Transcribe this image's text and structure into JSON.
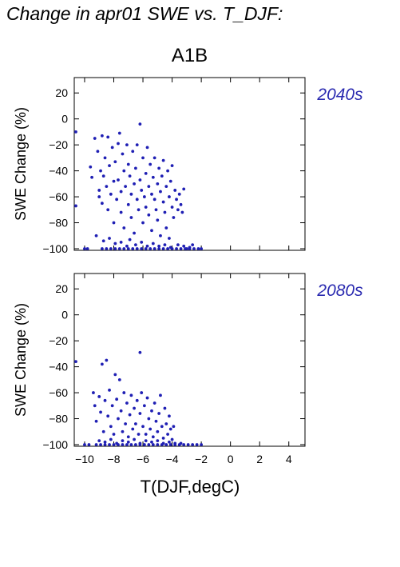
{
  "figure": {
    "title": "Change in apr01 SWE vs. T_DJF:",
    "scenario": "A1B",
    "xlabel": "T(DJF,degC)",
    "point_color": "#1f1fb4",
    "label_color": "#2a2ab0"
  },
  "chart_data": [
    {
      "type": "scatter",
      "panel_label": "2040s",
      "ylabel": "SWE Change (%)",
      "xlim": [
        -10.6,
        5.0
      ],
      "ylim": [
        -100,
        30
      ],
      "xticks": [
        -10,
        -8,
        -6,
        -4,
        -2,
        0,
        2,
        4
      ],
      "yticks": [
        20,
        0,
        -20,
        -40,
        -60,
        -80,
        -100
      ],
      "x_tick_labels": [
        "−10",
        "−8",
        "−6",
        "−4",
        "−2",
        "0",
        "2",
        "4"
      ],
      "y_tick_labels": [
        "20",
        "0",
        "−20",
        "−40",
        "−60",
        "−80",
        "−100"
      ],
      "show_x_tick_labels": false,
      "grid": false,
      "points": [
        [
          -10.6,
          -10
        ],
        [
          -10.6,
          -67
        ],
        [
          -10.0,
          -100
        ],
        [
          -9.8,
          -100
        ],
        [
          -9.6,
          -37
        ],
        [
          -9.5,
          -45
        ],
        [
          -9.3,
          -15
        ],
        [
          -9.1,
          -25
        ],
        [
          -9.0,
          -55
        ],
        [
          -9.0,
          -60
        ],
        [
          -8.9,
          -40
        ],
        [
          -8.8,
          -13
        ],
        [
          -8.8,
          -65
        ],
        [
          -8.7,
          -44
        ],
        [
          -8.6,
          -30
        ],
        [
          -8.5,
          -52
        ],
        [
          -8.4,
          -14
        ],
        [
          -8.4,
          -70
        ],
        [
          -8.3,
          -36
        ],
        [
          -8.2,
          -58
        ],
        [
          -8.1,
          -22
        ],
        [
          -8.0,
          -48
        ],
        [
          -8.0,
          -80
        ],
        [
          -7.9,
          -33
        ],
        [
          -7.8,
          -62
        ],
        [
          -7.7,
          -19
        ],
        [
          -7.7,
          -47
        ],
        [
          -7.6,
          -11
        ],
        [
          -7.5,
          -56
        ],
        [
          -7.5,
          -72
        ],
        [
          -7.4,
          -27
        ],
        [
          -7.3,
          -40
        ],
        [
          -7.3,
          -84
        ],
        [
          -7.2,
          -52
        ],
        [
          -7.1,
          -20
        ],
        [
          -7.0,
          -35
        ],
        [
          -7.0,
          -66
        ],
        [
          -6.9,
          -44
        ],
        [
          -6.8,
          -58
        ],
        [
          -6.8,
          -76
        ],
        [
          -6.7,
          -25
        ],
        [
          -6.6,
          -50
        ],
        [
          -6.6,
          -88
        ],
        [
          -6.5,
          -38
        ],
        [
          -6.4,
          -62
        ],
        [
          -6.4,
          -20
        ],
        [
          -6.3,
          -70
        ],
        [
          -6.2,
          -47
        ],
        [
          -6.2,
          -4
        ],
        [
          -6.1,
          -55
        ],
        [
          -6.0,
          -30
        ],
        [
          -6.0,
          -80
        ],
        [
          -5.9,
          -60
        ],
        [
          -5.8,
          -42
        ],
        [
          -5.8,
          -68
        ],
        [
          -5.7,
          -22
        ],
        [
          -5.6,
          -52
        ],
        [
          -5.6,
          -74
        ],
        [
          -5.5,
          -35
        ],
        [
          -5.4,
          -58
        ],
        [
          -5.4,
          -86
        ],
        [
          -5.3,
          -45
        ],
        [
          -5.2,
          -62
        ],
        [
          -5.2,
          -30
        ],
        [
          -5.1,
          -70
        ],
        [
          -5.0,
          -50
        ],
        [
          -5.0,
          -78
        ],
        [
          -4.9,
          -38
        ],
        [
          -4.8,
          -56
        ],
        [
          -4.8,
          -90
        ],
        [
          -4.7,
          -44
        ],
        [
          -4.6,
          -64
        ],
        [
          -4.6,
          -32
        ],
        [
          -4.5,
          -72
        ],
        [
          -4.4,
          -52
        ],
        [
          -4.4,
          -84
        ],
        [
          -4.3,
          -40
        ],
        [
          -4.2,
          -60
        ],
        [
          -4.2,
          -92
        ],
        [
          -4.1,
          -48
        ],
        [
          -4.0,
          -68
        ],
        [
          -4.0,
          -36
        ],
        [
          -3.9,
          -76
        ],
        [
          -3.8,
          -55
        ],
        [
          -3.7,
          -62
        ],
        [
          -3.6,
          -70
        ],
        [
          -3.5,
          -58
        ],
        [
          -3.4,
          -66
        ],
        [
          -3.3,
          -72
        ],
        [
          -3.2,
          -54
        ],
        [
          -3.0,
          -100
        ],
        [
          -9.2,
          -90
        ],
        [
          -8.7,
          -94
        ],
        [
          -8.3,
          -92
        ],
        [
          -7.9,
          -96
        ],
        [
          -7.5,
          -95
        ],
        [
          -7.1,
          -98
        ],
        [
          -6.9,
          -93
        ],
        [
          -6.5,
          -97
        ],
        [
          -6.1,
          -95
        ],
        [
          -5.7,
          -98
        ],
        [
          -5.3,
          -96
        ],
        [
          -4.9,
          -98
        ],
        [
          -4.5,
          -97
        ],
        [
          -4.1,
          -99
        ],
        [
          -3.6,
          -97
        ],
        [
          -3.2,
          -98
        ],
        [
          -2.8,
          -99
        ],
        [
          -2.6,
          -97
        ],
        [
          -8.8,
          -100
        ],
        [
          -8.5,
          -100
        ],
        [
          -8.2,
          -100
        ],
        [
          -7.9,
          -100
        ],
        [
          -7.6,
          -100
        ],
        [
          -7.3,
          -100
        ],
        [
          -7.0,
          -100
        ],
        [
          -6.7,
          -100
        ],
        [
          -6.4,
          -100
        ],
        [
          -6.1,
          -100
        ],
        [
          -5.8,
          -100
        ],
        [
          -5.5,
          -100
        ],
        [
          -5.2,
          -100
        ],
        [
          -4.9,
          -100
        ],
        [
          -4.6,
          -100
        ],
        [
          -4.3,
          -100
        ],
        [
          -4.0,
          -100
        ],
        [
          -3.7,
          -100
        ],
        [
          -3.4,
          -100
        ],
        [
          -3.1,
          -100
        ],
        [
          -2.8,
          -100
        ],
        [
          -2.5,
          -100
        ],
        [
          -2.2,
          -100
        ],
        [
          -2.0,
          -100
        ]
      ]
    },
    {
      "type": "scatter",
      "panel_label": "2080s",
      "ylabel": "SWE Change (%)",
      "xlim": [
        -10.6,
        5.0
      ],
      "ylim": [
        -100,
        30
      ],
      "xticks": [
        -10,
        -8,
        -6,
        -4,
        -2,
        0,
        2,
        4
      ],
      "yticks": [
        20,
        0,
        -20,
        -40,
        -60,
        -80,
        -100
      ],
      "x_tick_labels": [
        "−10",
        "−8",
        "−6",
        "−4",
        "−2",
        "0",
        "2",
        "4"
      ],
      "y_tick_labels": [
        "20",
        "0",
        "−20",
        "−40",
        "−60",
        "−80",
        "−100"
      ],
      "show_x_tick_labels": true,
      "grid": false,
      "points": [
        [
          -10.6,
          -36
        ],
        [
          -10.0,
          -100
        ],
        [
          -9.7,
          -100
        ],
        [
          -9.4,
          -60
        ],
        [
          -9.3,
          -70
        ],
        [
          -9.2,
          -82
        ],
        [
          -9.0,
          -63
        ],
        [
          -8.9,
          -75
        ],
        [
          -8.8,
          -38
        ],
        [
          -8.7,
          -90
        ],
        [
          -8.6,
          -66
        ],
        [
          -8.5,
          -35
        ],
        [
          -8.4,
          -78
        ],
        [
          -8.3,
          -58
        ],
        [
          -8.2,
          -86
        ],
        [
          -8.1,
          -70
        ],
        [
          -8.0,
          -92
        ],
        [
          -7.9,
          -46
        ],
        [
          -7.8,
          -65
        ],
        [
          -7.7,
          -80
        ],
        [
          -7.6,
          -50
        ],
        [
          -7.5,
          -74
        ],
        [
          -7.4,
          -90
        ],
        [
          -7.3,
          -60
        ],
        [
          -7.2,
          -84
        ],
        [
          -7.1,
          -68
        ],
        [
          -7.0,
          -94
        ],
        [
          -6.9,
          -77
        ],
        [
          -6.8,
          -62
        ],
        [
          -6.7,
          -88
        ],
        [
          -6.6,
          -72
        ],
        [
          -6.5,
          -84
        ],
        [
          -6.4,
          -66
        ],
        [
          -6.3,
          -92
        ],
        [
          -6.2,
          -29
        ],
        [
          -6.2,
          -76
        ],
        [
          -6.1,
          -60
        ],
        [
          -6.0,
          -86
        ],
        [
          -5.9,
          -70
        ],
        [
          -5.8,
          -92
        ],
        [
          -5.7,
          -64
        ],
        [
          -5.6,
          -80
        ],
        [
          -5.5,
          -88
        ],
        [
          -5.4,
          -74
        ],
        [
          -5.3,
          -94
        ],
        [
          -5.2,
          -68
        ],
        [
          -5.1,
          -82
        ],
        [
          -5.0,
          -90
        ],
        [
          -4.9,
          -76
        ],
        [
          -4.8,
          -62
        ],
        [
          -4.7,
          -86
        ],
        [
          -4.6,
          -95
        ],
        [
          -4.5,
          -72
        ],
        [
          -4.4,
          -84
        ],
        [
          -4.3,
          -92
        ],
        [
          -4.2,
          -78
        ],
        [
          -4.1,
          -88
        ],
        [
          -4.0,
          -96
        ],
        [
          -3.9,
          -86
        ],
        [
          -9.0,
          -97
        ],
        [
          -8.6,
          -98
        ],
        [
          -8.2,
          -96
        ],
        [
          -7.8,
          -99
        ],
        [
          -7.4,
          -97
        ],
        [
          -7.0,
          -98
        ],
        [
          -6.6,
          -96
        ],
        [
          -6.2,
          -99
        ],
        [
          -5.8,
          -97
        ],
        [
          -5.4,
          -98
        ],
        [
          -5.0,
          -97
        ],
        [
          -4.6,
          -99
        ],
        [
          -4.2,
          -98
        ],
        [
          -3.8,
          -99
        ],
        [
          -3.4,
          -99
        ],
        [
          -9.2,
          -100
        ],
        [
          -8.9,
          -100
        ],
        [
          -8.6,
          -100
        ],
        [
          -8.3,
          -100
        ],
        [
          -8.0,
          -100
        ],
        [
          -7.7,
          -100
        ],
        [
          -7.4,
          -100
        ],
        [
          -7.1,
          -100
        ],
        [
          -6.8,
          -100
        ],
        [
          -6.5,
          -100
        ],
        [
          -6.2,
          -100
        ],
        [
          -5.9,
          -100
        ],
        [
          -5.6,
          -100
        ],
        [
          -5.3,
          -100
        ],
        [
          -5.0,
          -100
        ],
        [
          -4.7,
          -100
        ],
        [
          -4.4,
          -100
        ],
        [
          -4.1,
          -100
        ],
        [
          -3.8,
          -100
        ],
        [
          -3.5,
          -100
        ],
        [
          -3.2,
          -100
        ],
        [
          -2.9,
          -100
        ],
        [
          -2.6,
          -100
        ],
        [
          -2.3,
          -100
        ],
        [
          -2.0,
          -100
        ]
      ]
    }
  ]
}
